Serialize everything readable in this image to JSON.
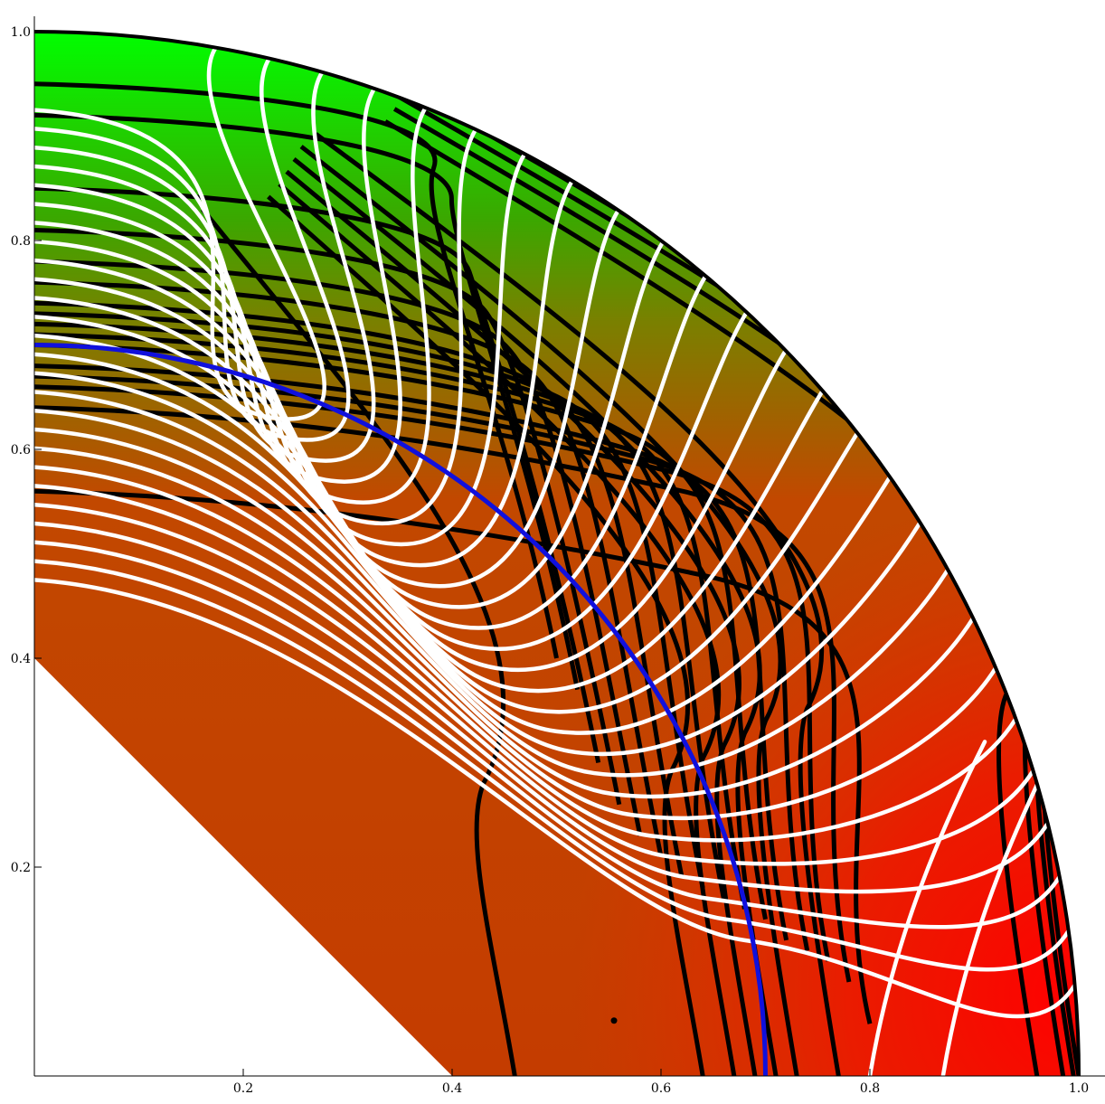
{
  "chart_data": {
    "type": "contour",
    "title": "",
    "xlabel": "",
    "ylabel": "",
    "xlim": [
      0,
      1.02
    ],
    "ylim": [
      0,
      1.02
    ],
    "x_ticks": [
      {
        "value": 0.2,
        "label": "0.2"
      },
      {
        "value": 0.4,
        "label": "0.4"
      },
      {
        "value": 0.6,
        "label": "0.6"
      },
      {
        "value": 0.8,
        "label": "0.8"
      },
      {
        "value": 1.0,
        "label": "1.0"
      }
    ],
    "y_ticks": [
      {
        "value": 0.2,
        "label": "0.2"
      },
      {
        "value": 0.4,
        "label": "0.4"
      },
      {
        "value": 0.6,
        "label": "0.6"
      },
      {
        "value": 0.8,
        "label": "0.8"
      },
      {
        "value": 1.0,
        "label": "1.0"
      }
    ],
    "domain": {
      "shape": "quarter-disc",
      "outer_radius": 1.0,
      "inner_cut_intercept": 0.4
    },
    "fill_colors": {
      "green": "#00ff00",
      "olive": "#8a7000",
      "brown": "#c43c00",
      "red": "#ff0000"
    },
    "boundary_curve": {
      "kind": "circle",
      "radius": 0.7,
      "color": "#1010dd"
    },
    "streamline_color": "#ffffff",
    "contour_color": "#000000",
    "point": {
      "x": 0.555,
      "y": 0.053
    },
    "streamline_foot_x": [
      0.8,
      0.87
    ],
    "contour_bottom_x": [
      0.46,
      0.64,
      0.67,
      0.69,
      0.71,
      0.73,
      0.77,
      0.96,
      0.985,
      0.995,
      1.0
    ],
    "contour_left_y": [
      0.95,
      0.92,
      0.85,
      0.81,
      0.78,
      0.76,
      0.74,
      0.73,
      0.72,
      0.71,
      0.7,
      0.68,
      0.67,
      0.66,
      0.64,
      0.56
    ]
  }
}
